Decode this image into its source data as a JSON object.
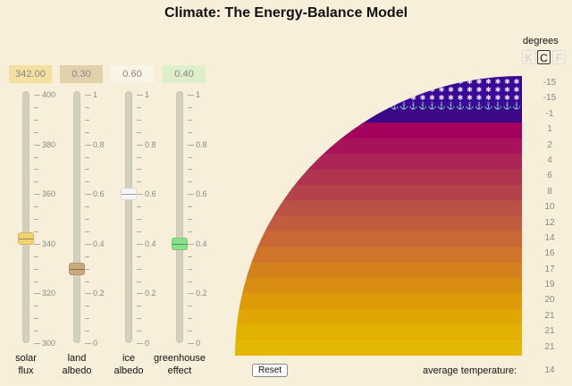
{
  "title": "Climate: The Energy-Balance Model",
  "sliders": [
    {
      "id": "solar",
      "label_line1": "solar",
      "label_line2": "flux",
      "display": "342.00",
      "value": 342,
      "min": 300,
      "max": 400,
      "ticks": [
        "400",
        "380",
        "360",
        "340",
        "320",
        "300"
      ],
      "box_color": "#f3dfa0",
      "thumb_color": "#f0d270"
    },
    {
      "id": "land",
      "label_line1": "land",
      "label_line2": "albedo",
      "display": "0.30",
      "value": 0.3,
      "min": 0,
      "max": 1,
      "ticks": [
        "1",
        "0.8",
        "0.6",
        "0.4",
        "0.2",
        "0"
      ],
      "box_color": "#e3d1ac",
      "thumb_color": "#c9aa7a"
    },
    {
      "id": "ice",
      "label_line1": "ice",
      "label_line2": "albedo",
      "display": "0.60",
      "value": 0.6,
      "min": 0,
      "max": 1,
      "ticks": [
        "1",
        "0.8",
        "0.6",
        "0.4",
        "0.2",
        "0"
      ],
      "box_color": "#faf4e6",
      "thumb_color": "#f6f6f6"
    },
    {
      "id": "greenhouse",
      "label_line1": "greenhouse",
      "label_line2": "effect",
      "display": "0.40",
      "value": 0.4,
      "min": 0,
      "max": 1,
      "ticks": [
        "1",
        "0.8",
        "0.6",
        "0.4",
        "0.2",
        "0"
      ],
      "box_color": "#dfeecb",
      "thumb_color": "#88e088"
    }
  ],
  "units": {
    "label": "degrees",
    "options": [
      "K",
      "C",
      "F"
    ],
    "selected": "C"
  },
  "zone_temperatures": [
    "-15",
    "-15",
    "-1",
    "1",
    "2",
    "4",
    "6",
    "8",
    "10",
    "12",
    "14",
    "16",
    "17",
    "19",
    "20",
    "21",
    "21",
    "21"
  ],
  "zone_colors": [
    "#3a0896",
    "#3a0896",
    "#3c0888",
    "#a3005c",
    "#a7125a",
    "#ab2455",
    "#b03450",
    "#b5424b",
    "#bb5045",
    "#c15c3e",
    "#c86835",
    "#cf742a",
    "#d4811d",
    "#d98e12",
    "#dd9b08",
    "#e0a603",
    "#e2b000",
    "#e4b800"
  ],
  "ice_rows": [
    {
      "glyph": "✱",
      "count": 3
    },
    {
      "glyph": "✱",
      "count": 3
    }
  ],
  "ice_edge_glyph": "⚓",
  "reset_label": "Reset",
  "average_label": "average temperature:",
  "average_value": "14"
}
